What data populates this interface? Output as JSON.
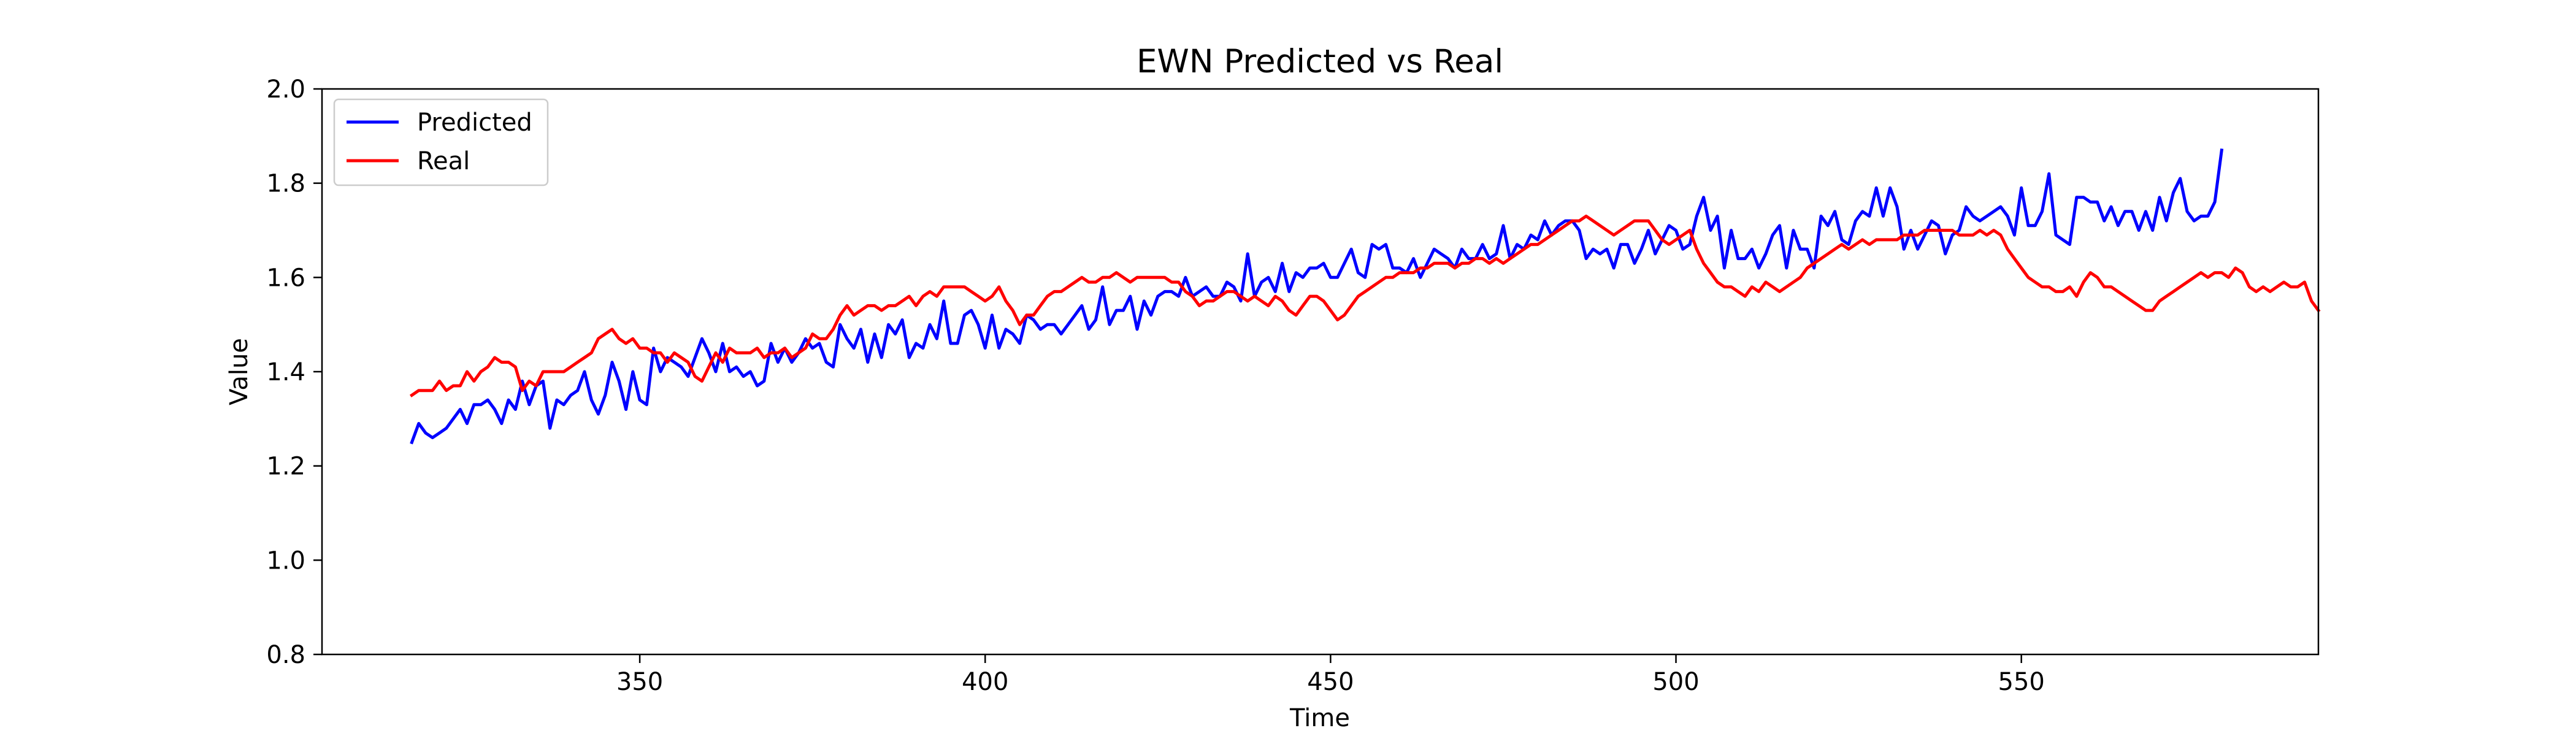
{
  "chart_data": {
    "type": "line",
    "title": "EWN Predicted vs Real",
    "xlabel": "Time",
    "ylabel": "Value",
    "xlim": [
      304,
      593
    ],
    "ylim": [
      0.8,
      2.0
    ],
    "xticks": [
      350,
      400,
      450,
      500,
      550
    ],
    "xtick_labels": [
      "350",
      "400",
      "450",
      "500",
      "550"
    ],
    "yticks": [
      0.8,
      1.0,
      1.2,
      1.4,
      1.6,
      1.8,
      2.0
    ],
    "ytick_labels": [
      "0.8",
      "1.0",
      "1.2",
      "1.4",
      "1.6",
      "1.8",
      "2.0"
    ],
    "grid": false,
    "legend": "top-left",
    "series": [
      {
        "name": "Predicted",
        "color": "#0000ff",
        "x_start": 317,
        "x_step": 1,
        "values": [
          1.25,
          1.29,
          1.27,
          1.26,
          1.27,
          1.28,
          1.3,
          1.32,
          1.29,
          1.33,
          1.33,
          1.34,
          1.32,
          1.29,
          1.34,
          1.32,
          1.38,
          1.33,
          1.37,
          1.38,
          1.28,
          1.34,
          1.33,
          1.35,
          1.36,
          1.4,
          1.34,
          1.31,
          1.35,
          1.42,
          1.38,
          1.32,
          1.4,
          1.34,
          1.33,
          1.45,
          1.4,
          1.43,
          1.42,
          1.41,
          1.39,
          1.43,
          1.47,
          1.44,
          1.4,
          1.46,
          1.4,
          1.41,
          1.39,
          1.4,
          1.37,
          1.38,
          1.46,
          1.42,
          1.45,
          1.42,
          1.44,
          1.47,
          1.45,
          1.46,
          1.42,
          1.41,
          1.5,
          1.47,
          1.45,
          1.49,
          1.42,
          1.48,
          1.43,
          1.5,
          1.48,
          1.51,
          1.43,
          1.46,
          1.45,
          1.5,
          1.47,
          1.55,
          1.46,
          1.46,
          1.52,
          1.53,
          1.5,
          1.45,
          1.52,
          1.45,
          1.49,
          1.48,
          1.46,
          1.52,
          1.51,
          1.49,
          1.5,
          1.5,
          1.48,
          1.5,
          1.52,
          1.54,
          1.49,
          1.51,
          1.58,
          1.5,
          1.53,
          1.53,
          1.56,
          1.49,
          1.55,
          1.52,
          1.56,
          1.57,
          1.57,
          1.56,
          1.6,
          1.56,
          1.57,
          1.58,
          1.56,
          1.56,
          1.59,
          1.58,
          1.55,
          1.65,
          1.56,
          1.59,
          1.6,
          1.57,
          1.63,
          1.57,
          1.61,
          1.6,
          1.62,
          1.62,
          1.63,
          1.6,
          1.6,
          1.63,
          1.66,
          1.61,
          1.6,
          1.67,
          1.66,
          1.67,
          1.62,
          1.62,
          1.61,
          1.64,
          1.6,
          1.63,
          1.66,
          1.65,
          1.64,
          1.62,
          1.66,
          1.64,
          1.64,
          1.67,
          1.64,
          1.65,
          1.71,
          1.64,
          1.67,
          1.66,
          1.69,
          1.68,
          1.72,
          1.69,
          1.71,
          1.72,
          1.72,
          1.7,
          1.64,
          1.66,
          1.65,
          1.66,
          1.62,
          1.67,
          1.67,
          1.63,
          1.66,
          1.7,
          1.65,
          1.68,
          1.71,
          1.7,
          1.66,
          1.67,
          1.73,
          1.77,
          1.7,
          1.73,
          1.62,
          1.7,
          1.64,
          1.64,
          1.66,
          1.62,
          1.65,
          1.69,
          1.71,
          1.62,
          1.7,
          1.66,
          1.66,
          1.62,
          1.73,
          1.71,
          1.74,
          1.68,
          1.67,
          1.72,
          1.74,
          1.73,
          1.79,
          1.73,
          1.79,
          1.75,
          1.66,
          1.7,
          1.66,
          1.69,
          1.72,
          1.71,
          1.65,
          1.69,
          1.7,
          1.75,
          1.73,
          1.72,
          1.73,
          1.74,
          1.75,
          1.73,
          1.69,
          1.79,
          1.71,
          1.71,
          1.74,
          1.82,
          1.69,
          1.68,
          1.67,
          1.77,
          1.77,
          1.76,
          1.76,
          1.72,
          1.75,
          1.71,
          1.74,
          1.74,
          1.7,
          1.74,
          1.7,
          1.77,
          1.72,
          1.78,
          1.81,
          1.74,
          1.72,
          1.73,
          1.73,
          1.76,
          1.87
        ]
      },
      {
        "name": "Real",
        "color": "#ff0000",
        "x_start": 317,
        "x_step": 1,
        "values": [
          1.35,
          1.36,
          1.36,
          1.36,
          1.38,
          1.36,
          1.37,
          1.37,
          1.4,
          1.38,
          1.4,
          1.41,
          1.43,
          1.42,
          1.42,
          1.41,
          1.36,
          1.38,
          1.37,
          1.4,
          1.4,
          1.4,
          1.4,
          1.41,
          1.42,
          1.43,
          1.44,
          1.47,
          1.48,
          1.49,
          1.47,
          1.46,
          1.47,
          1.45,
          1.45,
          1.44,
          1.44,
          1.42,
          1.44,
          1.43,
          1.42,
          1.39,
          1.38,
          1.41,
          1.44,
          1.42,
          1.45,
          1.44,
          1.44,
          1.44,
          1.45,
          1.43,
          1.44,
          1.44,
          1.45,
          1.43,
          1.44,
          1.45,
          1.48,
          1.47,
          1.47,
          1.49,
          1.52,
          1.54,
          1.52,
          1.53,
          1.54,
          1.54,
          1.53,
          1.54,
          1.54,
          1.55,
          1.56,
          1.54,
          1.56,
          1.57,
          1.56,
          1.58,
          1.58,
          1.58,
          1.58,
          1.57,
          1.56,
          1.55,
          1.56,
          1.58,
          1.55,
          1.53,
          1.5,
          1.52,
          1.52,
          1.54,
          1.56,
          1.57,
          1.57,
          1.58,
          1.59,
          1.6,
          1.59,
          1.59,
          1.6,
          1.6,
          1.61,
          1.6,
          1.59,
          1.6,
          1.6,
          1.6,
          1.6,
          1.6,
          1.59,
          1.59,
          1.57,
          1.56,
          1.54,
          1.55,
          1.55,
          1.56,
          1.57,
          1.57,
          1.56,
          1.55,
          1.56,
          1.55,
          1.54,
          1.56,
          1.55,
          1.53,
          1.52,
          1.54,
          1.56,
          1.56,
          1.55,
          1.53,
          1.51,
          1.52,
          1.54,
          1.56,
          1.57,
          1.58,
          1.59,
          1.6,
          1.6,
          1.61,
          1.61,
          1.61,
          1.62,
          1.62,
          1.63,
          1.63,
          1.63,
          1.62,
          1.63,
          1.63,
          1.64,
          1.64,
          1.63,
          1.64,
          1.63,
          1.64,
          1.65,
          1.66,
          1.67,
          1.67,
          1.68,
          1.69,
          1.7,
          1.71,
          1.72,
          1.72,
          1.73,
          1.72,
          1.71,
          1.7,
          1.69,
          1.7,
          1.71,
          1.72,
          1.72,
          1.72,
          1.7,
          1.68,
          1.67,
          1.68,
          1.69,
          1.7,
          1.66,
          1.63,
          1.61,
          1.59,
          1.58,
          1.58,
          1.57,
          1.56,
          1.58,
          1.57,
          1.59,
          1.58,
          1.57,
          1.58,
          1.59,
          1.6,
          1.62,
          1.63,
          1.64,
          1.65,
          1.66,
          1.67,
          1.66,
          1.67,
          1.68,
          1.67,
          1.68,
          1.68,
          1.68,
          1.68,
          1.69,
          1.69,
          1.69,
          1.7,
          1.7,
          1.7,
          1.7,
          1.7,
          1.69,
          1.69,
          1.69,
          1.7,
          1.69,
          1.7,
          1.69,
          1.66,
          1.64,
          1.62,
          1.6,
          1.59,
          1.58,
          1.58,
          1.57,
          1.57,
          1.58,
          1.56,
          1.59,
          1.61,
          1.6,
          1.58,
          1.58,
          1.57,
          1.56,
          1.55,
          1.54,
          1.53,
          1.53,
          1.55,
          1.56,
          1.57,
          1.58,
          1.59,
          1.6,
          1.61,
          1.6,
          1.61,
          1.61,
          1.6,
          1.62,
          1.61,
          1.58,
          1.57,
          1.58,
          1.57,
          1.58,
          1.59,
          1.58,
          1.58,
          1.59,
          1.55,
          1.53
        ]
      }
    ]
  }
}
